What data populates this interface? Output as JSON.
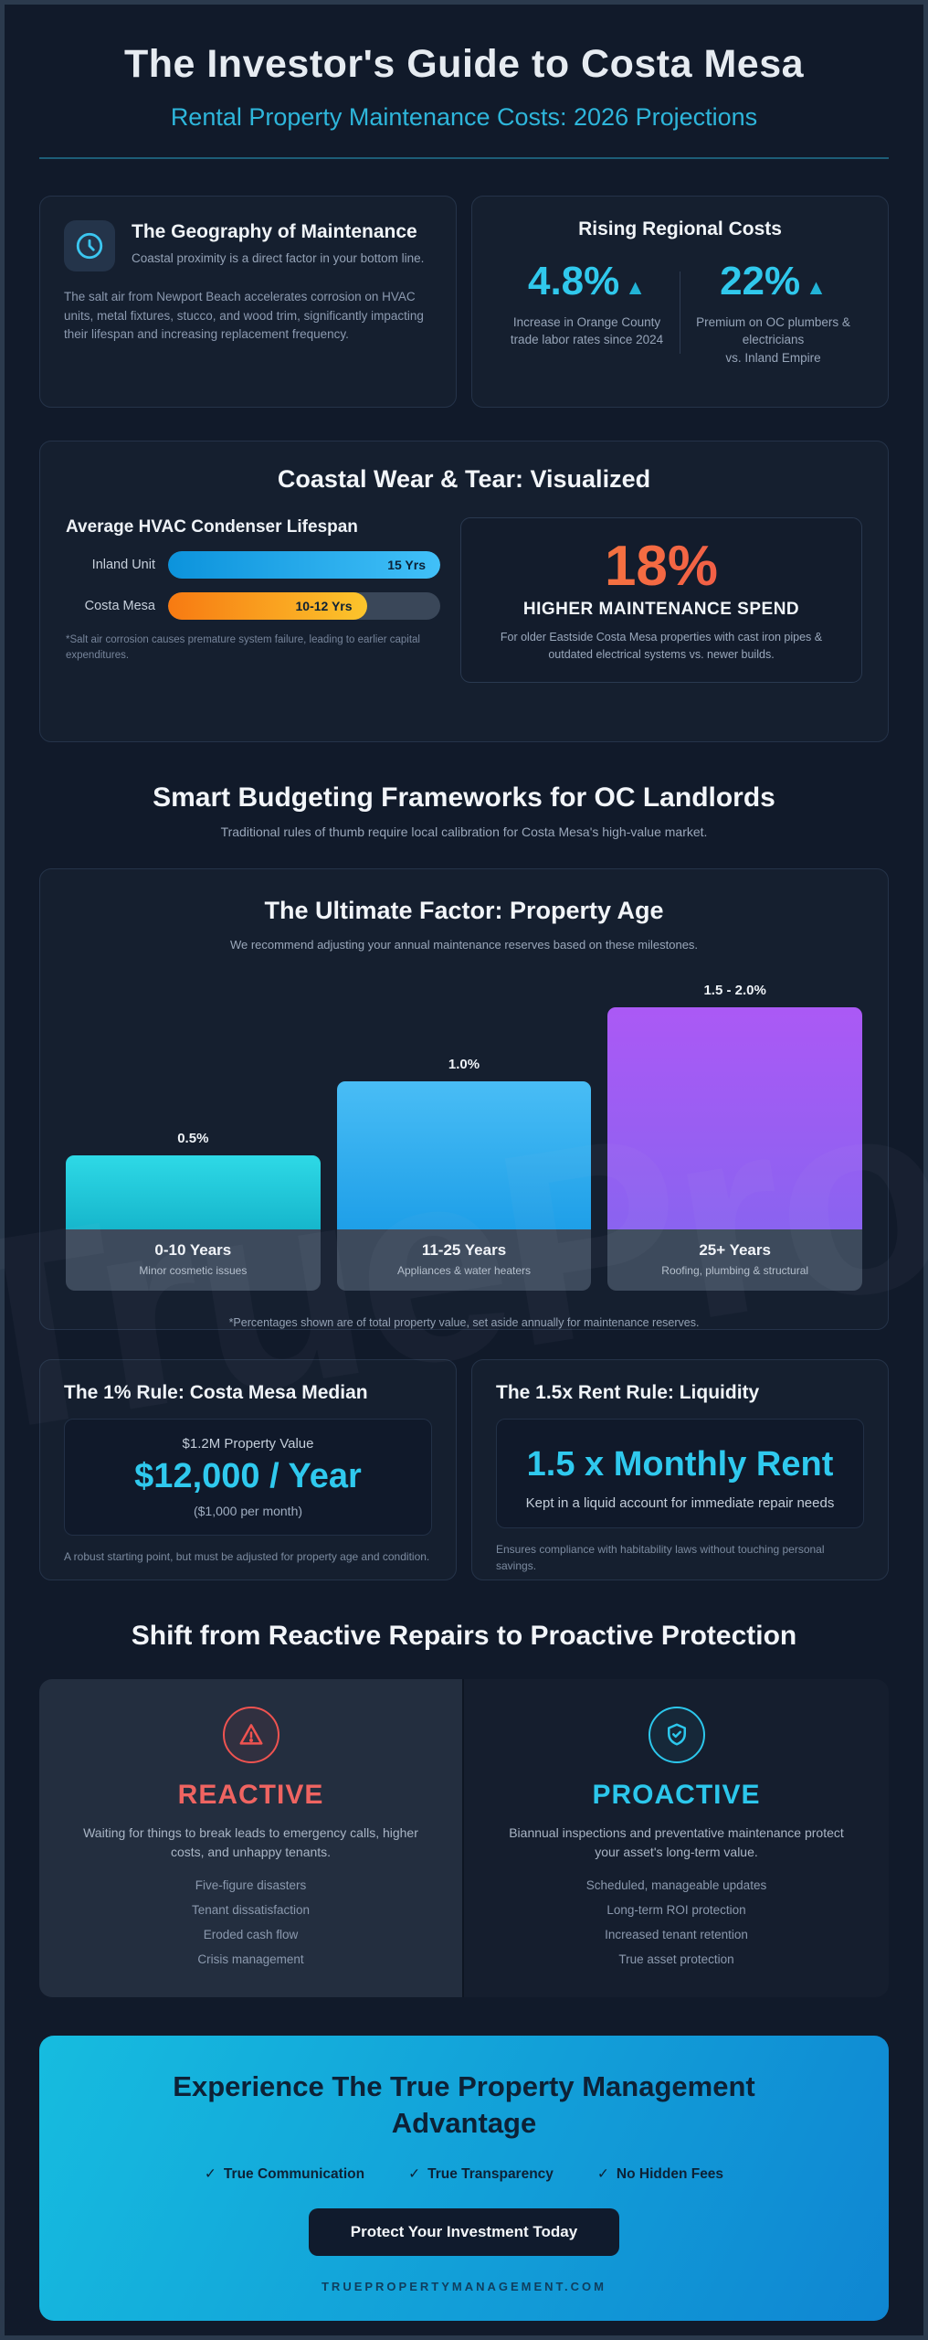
{
  "page": {
    "title": "The Investor's Guide to Costa Mesa",
    "subtitle": "Rental Property Maintenance Costs: 2026 Projections",
    "watermark": "TruePropertyManagement"
  },
  "geography_card": {
    "title": "The Geography of Maintenance",
    "icon": "clock-icon",
    "subtitle": "Coastal proximity is a direct factor in your bottom line.",
    "body": "The salt air from Newport Beach accelerates corrosion on HVAC units, metal fixtures, stucco, and wood trim, significantly impacting their lifespan and increasing replacement frequency."
  },
  "regional_costs_card": {
    "title": "Rising Regional Costs",
    "stats": [
      {
        "value": "4.8%",
        "arrow": "▲",
        "caption": "Increase in Orange County\ntrade labor rates since 2024"
      },
      {
        "value": "22%",
        "arrow": "▲",
        "caption": "Premium on OC plumbers & electricians\nvs. Inland Empire"
      }
    ]
  },
  "coastal_section": {
    "title": "Coastal Wear & Tear: Visualized",
    "hvac_note": "*Salt air corrosion causes premature system failure, leading to earlier capital expenditures.",
    "spend_card": {
      "value": "18%",
      "label": "HIGHER MAINTENANCE SPEND",
      "body": "For older Eastside Costa Mesa properties with cast iron pipes & outdated electrical systems vs. newer builds."
    }
  },
  "budgeting_section": {
    "heading": "Smart Budgeting Frameworks for OC Landlords",
    "subheading": "Traditional rules of thumb require local calibration for Costa Mesa's high-value market.",
    "age_card": {
      "title": "The Ultimate Factor: Property Age",
      "subtitle": "We recommend adjusting your annual maintenance reserves based on these milestones.",
      "footnote": "*Percentages shown are of total property value, set aside annually for maintenance reserves."
    }
  },
  "chart_data": [
    {
      "type": "bar",
      "orientation": "horizontal",
      "title": "Average HVAC Condenser Lifespan",
      "categories": [
        "Inland Unit",
        "Costa Mesa"
      ],
      "values": [
        15,
        11
      ],
      "value_labels": [
        "15 Yrs",
        "10-12 Yrs"
      ],
      "xlim": [
        0,
        15
      ],
      "bar_colors": [
        "#29b2f0",
        "#f99c1d"
      ],
      "grid": false,
      "legend": "none"
    },
    {
      "type": "bar",
      "title": "The Ultimate Factor: Property Age",
      "categories": [
        "0-10 Years",
        "11-25 Years",
        "25+ Years"
      ],
      "category_captions": [
        "Minor cosmetic issues",
        "Appliances & water heaters",
        "Roofing, plumbing & structural"
      ],
      "values": [
        0.5,
        1.0,
        1.5
      ],
      "value_labels": [
        "0.5%",
        "1.0%",
        "1.5 - 2.0%"
      ],
      "ylabel": "% of total property value reserved annually",
      "ylim": [
        0,
        2
      ],
      "bar_colors": [
        "#22cede",
        "#33aeef",
        "#9a5ef3"
      ],
      "grid": false,
      "legend": "none"
    }
  ],
  "rule_cards": [
    {
      "title": "The 1% Rule: Costa Mesa Median",
      "small": "$1.2M Property Value",
      "value": "$12,000 / Year",
      "sub": "($1,000 per month)",
      "footer": "A robust starting point, but must be adjusted for property age and condition."
    },
    {
      "title": "The 1.5x Rent Rule: Liquidity",
      "value": "1.5 x Monthly Rent",
      "sub": "Kept in a liquid account for immediate repair needs",
      "footer": "Ensures compliance with habitability laws without touching personal savings."
    }
  ],
  "shift_section": {
    "heading": "Shift from Reactive Repairs to Proactive Protection",
    "reactive": {
      "title": "REACTIVE",
      "icon": "warning-triangle-icon",
      "description": "Waiting for things to break leads to emergency calls, higher costs, and unhappy tenants.",
      "items": [
        "Five-figure disasters",
        "Tenant dissatisfaction",
        "Eroded cash flow",
        "Crisis management"
      ]
    },
    "proactive": {
      "title": "PROACTIVE",
      "icon": "shield-check-icon",
      "description": "Biannual inspections and preventative maintenance protect your asset's long-term value.",
      "items": [
        "Scheduled, manageable updates",
        "Long-term ROI protection",
        "Increased tenant retention",
        "True asset protection"
      ]
    }
  },
  "cta": {
    "title": "Experience The True Property Management Advantage",
    "checks": [
      "True Communication",
      "True Transparency",
      "No Hidden Fees"
    ],
    "check_mark": "✓",
    "button_label": "Protect Your Investment Today",
    "domain": "TRUEPROPERTYMANAGEMENT.COM",
    "accent_colors": {
      "gradient_start": "#16bcdf",
      "gradient_end": "#0f86d2",
      "button_bg": "#101b2d"
    }
  },
  "theme": {
    "background": "#111a2a",
    "card_background": "#151f2f",
    "accent_cyan": "#2fc9ee",
    "accent_orange": "#f97c16",
    "accent_red": "#ef5350",
    "accent_purple": "#9a5ef3"
  }
}
